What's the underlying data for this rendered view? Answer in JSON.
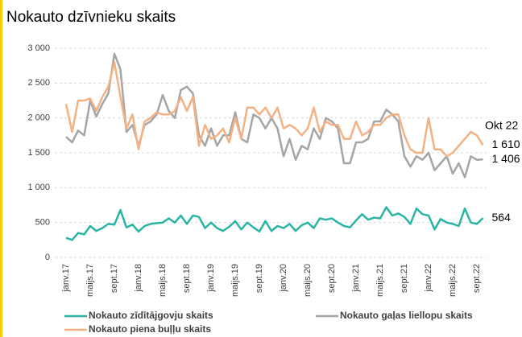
{
  "chart_data": {
    "type": "line",
    "title": "Nokauto dzīvnieku skaits",
    "annotation": "Okt 22",
    "categories": [
      "janv.17",
      null,
      null,
      null,
      "maijs.17",
      null,
      null,
      null,
      "sept.17",
      null,
      null,
      null,
      "janv.18",
      null,
      null,
      null,
      "maijs.18",
      null,
      null,
      null,
      "sept.18",
      null,
      null,
      null,
      "janv.19",
      null,
      null,
      null,
      "maijs.19",
      null,
      null,
      null,
      "sept.19",
      null,
      null,
      null,
      "janv.20",
      null,
      null,
      null,
      "maijs.20",
      null,
      null,
      null,
      "sept.20",
      null,
      null,
      null,
      "janv.21",
      null,
      null,
      null,
      "maijs.21",
      null,
      null,
      null,
      "sept.21",
      null,
      null,
      null,
      "janv.22",
      null,
      null,
      null,
      "maijs.22",
      null,
      null,
      null,
      "sept.22",
      null
    ],
    "series": [
      {
        "name": "Nokauto zīdītājgovju skaits",
        "color": "#2bb3a3",
        "values": [
          280,
          250,
          350,
          330,
          450,
          380,
          420,
          480,
          470,
          680,
          430,
          470,
          370,
          450,
          480,
          490,
          500,
          560,
          500,
          600,
          480,
          600,
          580,
          420,
          500,
          420,
          380,
          440,
          520,
          400,
          500,
          430,
          370,
          520,
          380,
          450,
          420,
          480,
          380,
          460,
          500,
          420,
          560,
          540,
          560,
          500,
          450,
          430,
          530,
          620,
          540,
          570,
          560,
          720,
          600,
          630,
          580,
          480,
          700,
          620,
          600,
          400,
          550,
          500,
          480,
          450,
          700,
          500,
          480,
          564
        ],
        "value_labels": [
          null,
          null,
          null,
          null,
          null,
          null,
          null,
          null,
          null,
          null,
          null,
          null,
          null,
          null,
          null,
          null,
          null,
          null,
          null,
          null,
          null,
          null,
          null,
          null,
          null,
          null,
          null,
          null,
          null,
          null,
          null,
          null,
          null,
          null,
          null,
          null,
          null,
          null,
          null,
          null,
          null,
          null,
          null,
          null,
          null,
          null,
          null,
          null,
          null,
          null,
          null,
          null,
          null,
          null,
          null,
          null,
          null,
          null,
          null,
          null,
          null,
          null,
          null,
          null,
          null,
          null,
          null,
          null,
          null,
          "564"
        ]
      },
      {
        "name": "Nokauto gaļas liellopu skaits",
        "color": "#a5a5a5",
        "values": [
          1730,
          1650,
          1820,
          1750,
          2250,
          2020,
          2200,
          2350,
          2920,
          2700,
          1800,
          1900,
          1600,
          1900,
          1950,
          2050,
          2330,
          2100,
          2000,
          2400,
          2450,
          2350,
          1750,
          1600,
          1850,
          1600,
          1750,
          1750,
          2080,
          1700,
          1650,
          2050,
          2000,
          1850,
          2000,
          1850,
          1450,
          1700,
          1400,
          1600,
          1550,
          1850,
          1700,
          2000,
          1950,
          1850,
          1350,
          1350,
          1650,
          1650,
          1700,
          1950,
          1950,
          2120,
          2050,
          1950,
          1450,
          1300,
          1450,
          1400,
          1500,
          1250,
          1350,
          1450,
          1200,
          1350,
          1150,
          1450,
          1400,
          1406
        ],
        "value_labels": [
          null,
          null,
          null,
          null,
          null,
          null,
          null,
          null,
          null,
          null,
          null,
          null,
          null,
          null,
          null,
          null,
          null,
          null,
          null,
          null,
          null,
          null,
          null,
          null,
          null,
          null,
          null,
          null,
          null,
          null,
          null,
          null,
          null,
          null,
          null,
          null,
          null,
          null,
          null,
          null,
          null,
          null,
          null,
          null,
          null,
          null,
          null,
          null,
          null,
          null,
          null,
          null,
          null,
          null,
          null,
          null,
          null,
          null,
          null,
          null,
          null,
          null,
          null,
          null,
          null,
          null,
          null,
          null,
          null,
          "1 406"
        ]
      },
      {
        "name": "Nokauto piena buļļu skaits",
        "color": "#f4b183",
        "values": [
          2200,
          1800,
          2250,
          2250,
          2280,
          2100,
          2300,
          2450,
          2800,
          2300,
          1850,
          2050,
          1550,
          1950,
          2000,
          2080,
          2050,
          2050,
          2100,
          2300,
          2100,
          2300,
          1600,
          1900,
          1700,
          1750,
          1850,
          1650,
          2000,
          1700,
          2150,
          2150,
          2050,
          2150,
          2000,
          2150,
          1850,
          1900,
          1850,
          1750,
          1850,
          2150,
          1800,
          1950,
          1900,
          1900,
          1700,
          1700,
          1950,
          1750,
          1800,
          1900,
          1900,
          2000,
          2050,
          2050,
          1750,
          1550,
          1500,
          1500,
          2000,
          1550,
          1550,
          1450,
          1500,
          1600,
          1700,
          1800,
          1750,
          1610
        ],
        "value_labels": [
          null,
          null,
          null,
          null,
          null,
          null,
          null,
          null,
          null,
          null,
          null,
          null,
          null,
          null,
          null,
          null,
          null,
          null,
          null,
          null,
          null,
          null,
          null,
          null,
          null,
          null,
          null,
          null,
          null,
          null,
          null,
          null,
          null,
          null,
          null,
          null,
          null,
          null,
          null,
          null,
          null,
          null,
          null,
          null,
          null,
          null,
          null,
          null,
          null,
          null,
          null,
          null,
          null,
          null,
          null,
          null,
          null,
          null,
          null,
          null,
          null,
          null,
          null,
          null,
          null,
          null,
          null,
          null,
          null,
          "1 610"
        ]
      }
    ],
    "ylim": [
      0,
      3000
    ],
    "yticks": [
      0,
      500,
      {
        "value": 1000,
        "label": "1 000"
      },
      {
        "value": 1500,
        "label": "1 500"
      },
      {
        "value": 2000,
        "label": "2 000"
      },
      {
        "value": 2500,
        "label": "2 500"
      },
      {
        "value": 3000,
        "label": "3 000"
      }
    ],
    "grid": true
  }
}
